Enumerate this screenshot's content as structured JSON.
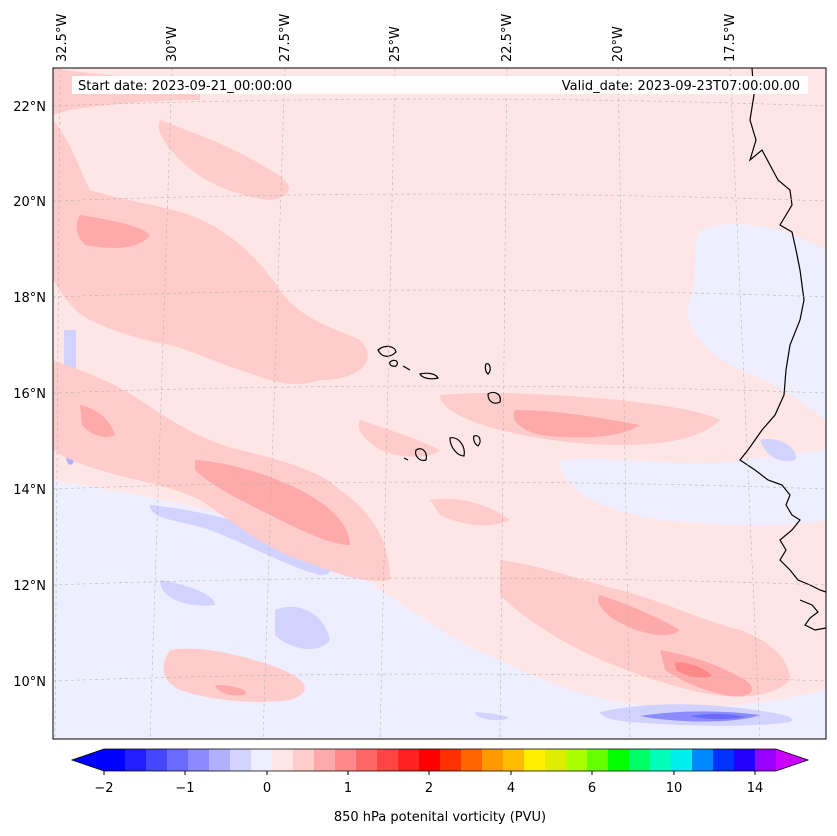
{
  "map": {
    "start_date_text": "Start date: 2023-09-21_00:00:00",
    "valid_date_text": "Valid_date: 2023-09-23T07:00:00.00",
    "lon_labels": [
      "32.5°W",
      "30°W",
      "27.5°W",
      "25°W",
      "22.5°W",
      "20°W",
      "17.5°W"
    ],
    "lat_labels": [
      "22°N",
      "20°N",
      "18°N",
      "16°N",
      "14°N",
      "12°N",
      "10°N"
    ],
    "background_color": "#ffe6e6",
    "coastline_color": "#000000"
  },
  "colorbar": {
    "label": "850 hPa potenital vorticity (PVU)",
    "tick_labels": [
      "−2",
      "−1",
      "0",
      "1",
      "2",
      "4",
      "6",
      "10",
      "14"
    ],
    "colors": [
      "#0000ff",
      "#2020ff",
      "#4646ff",
      "#6a6aff",
      "#8c8cff",
      "#b0b0ff",
      "#d2d2ff",
      "#eeeeff",
      "#ffe6e6",
      "#ffcccc",
      "#ffaaaa",
      "#ff8888",
      "#ff6666",
      "#ff4444",
      "#ff2222",
      "#ff0000",
      "#ff3300",
      "#ff6600",
      "#ff9900",
      "#ffbb00",
      "#ffee00",
      "#ddee00",
      "#aaff00",
      "#66ff00",
      "#00ff00",
      "#00ff66",
      "#00ffbb",
      "#00eeee",
      "#0088ff",
      "#0033ff",
      "#2200ff",
      "#9900ff"
    ],
    "extend_low_color": "#0000ff",
    "extend_high_color": "#cc00ff"
  }
}
